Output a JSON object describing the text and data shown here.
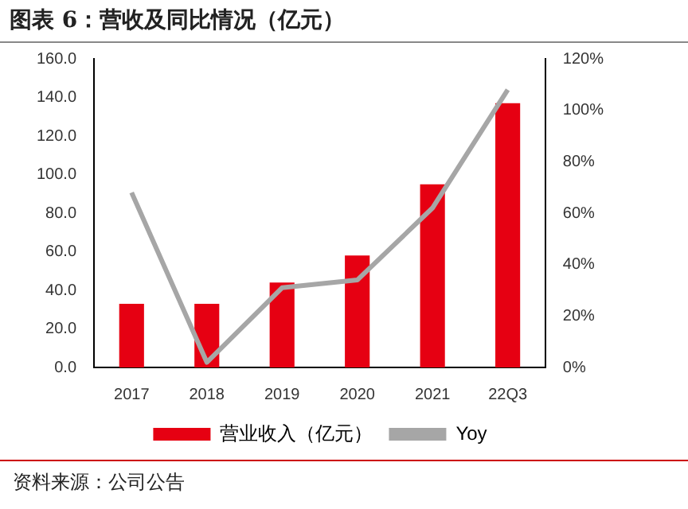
{
  "chart_data": {
    "type": "bar",
    "title": "图表 6：营收及同比情况（亿元）",
    "annotations": [
      "资料来源：公司公告"
    ],
    "categories": [
      "2017",
      "2018",
      "2019",
      "2020",
      "2021",
      "22Q3"
    ],
    "series": [
      {
        "name": "营业收入（亿元）",
        "color": "#e60012",
        "values": [
          33,
          33,
          44,
          58,
          95,
          137
        ]
      },
      {
        "name": "Yoy",
        "type": "line",
        "axis": "y2",
        "color": "#a6a6a6",
        "values": [
          68,
          2,
          31,
          34,
          62,
          108
        ]
      }
    ],
    "ylim": [
      0,
      160
    ],
    "yticks": [
      {
        "value": 0,
        "label": "0.0"
      },
      {
        "value": 20,
        "label": "20.0"
      },
      {
        "value": 40,
        "label": "40.0"
      },
      {
        "value": 60,
        "label": "60.0"
      },
      {
        "value": 80,
        "label": "80.0"
      },
      {
        "value": 100,
        "label": "100.0"
      },
      {
        "value": 120,
        "label": "120.0"
      },
      {
        "value": 140,
        "label": "140.0"
      },
      {
        "value": 160,
        "label": "160.0"
      }
    ],
    "y2lim": [
      0,
      120
    ],
    "y2ticks": [
      {
        "value": 0,
        "label": "0%"
      },
      {
        "value": 20,
        "label": "20%"
      },
      {
        "value": 40,
        "label": "40%"
      },
      {
        "value": 60,
        "label": "60%"
      },
      {
        "value": 80,
        "label": "80%"
      },
      {
        "value": 100,
        "label": "100%"
      },
      {
        "value": 120,
        "label": "120%"
      }
    ],
    "grid": false,
    "legend": "bottom",
    "marker": "none"
  }
}
